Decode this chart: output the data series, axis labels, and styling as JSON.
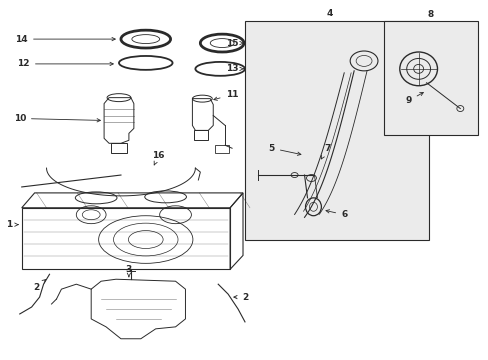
{
  "bg_color": "#ffffff",
  "fig_width": 4.89,
  "fig_height": 3.6,
  "dpi": 100,
  "gray": "#2a2a2a",
  "lw_main": 0.8,
  "lw_thin": 0.5,
  "fontsize": 6.5
}
